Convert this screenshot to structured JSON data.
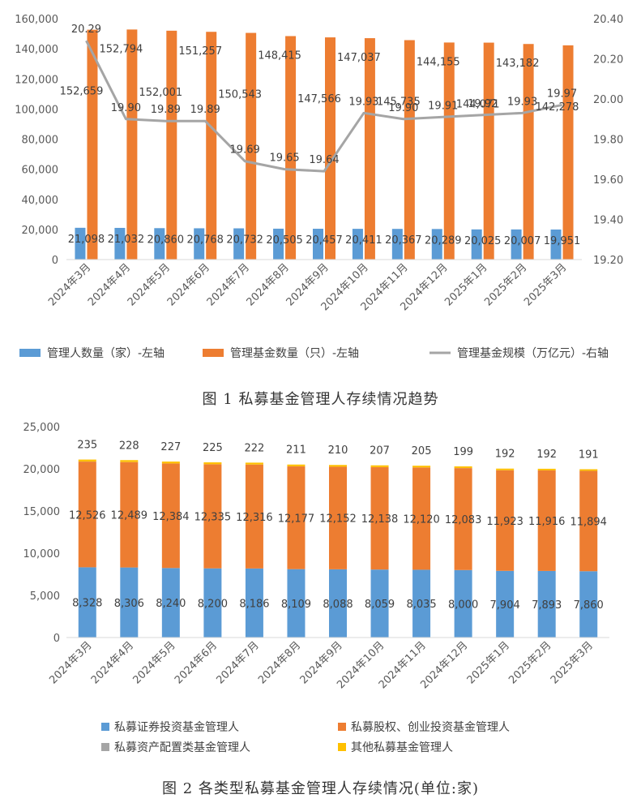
{
  "colors": {
    "blue": "#5b9bd5",
    "orange": "#ed7d31",
    "gray": "#a5a5a5",
    "yellow": "#ffc000",
    "axis": "#d9d9d9"
  },
  "figure1": {
    "caption": "图 1 私募基金管理人存续情况趋势",
    "chart_data": {
      "type": "bar",
      "categories": [
        "2024年3月",
        "2024年4月",
        "2024年5月",
        "2024年6月",
        "2024年7月",
        "2024年8月",
        "2024年9月",
        "2024年10月",
        "2024年11月",
        "2024年12月",
        "2025年1月",
        "2025年2月",
        "2025年3月"
      ],
      "series": [
        {
          "name": "管理人数量（家）-左轴",
          "type": "bar",
          "axis": "left",
          "color": "#5b9bd5",
          "values": [
            21098,
            21032,
            20860,
            20768,
            20732,
            20505,
            20457,
            20411,
            20367,
            20289,
            20025,
            20007,
            19951
          ],
          "labels": [
            "21,098",
            "21,032",
            "20,860",
            "20,768",
            "20,732",
            "20,505",
            "20,457",
            "20,411",
            "20,367",
            "20,289",
            "20,025",
            "20,007",
            "19,951"
          ]
        },
        {
          "name": "管理基金数量（只）-左轴",
          "type": "bar",
          "axis": "left",
          "color": "#ed7d31",
          "values": [
            152659,
            152794,
            152001,
            151257,
            150543,
            148415,
            147566,
            147037,
            145735,
            144155,
            144071,
            143182,
            142278
          ],
          "labels": [
            "152,659",
            "152,794",
            "152,001",
            "151,257",
            "150,543",
            "148,415",
            "147,566",
            "147,037",
            "145,735",
            "144,155",
            "144,071",
            "143,182",
            "142,278"
          ]
        },
        {
          "name": "管理基金规模（万亿元）-右轴",
          "type": "line",
          "axis": "right",
          "color": "#a5a5a5",
          "values": [
            20.29,
            19.9,
            19.89,
            19.89,
            19.69,
            19.65,
            19.64,
            19.93,
            19.9,
            19.91,
            19.92,
            19.93,
            19.97
          ],
          "labels": [
            "20.29",
            "19.90",
            "19.89",
            "19.89",
            "19.69",
            "19.65",
            "19.64",
            "19.93",
            "19.90",
            "19.91",
            "19.92",
            "19.93",
            "19.97"
          ]
        }
      ],
      "left_axis": {
        "min": 0,
        "max": 160000,
        "ticks": [
          "0",
          "20,000",
          "40,000",
          "60,000",
          "80,000",
          "100,000",
          "120,000",
          "140,000",
          "160,000"
        ]
      },
      "right_axis": {
        "min": 19.2,
        "max": 20.4,
        "ticks": [
          "19.20",
          "19.40",
          "19.60",
          "19.80",
          "20.00",
          "20.20",
          "20.40"
        ]
      },
      "legend_position": "bottom",
      "grid": false
    }
  },
  "figure2": {
    "caption": "图 2 各类型私募基金管理人存续情况(单位:家)",
    "chart_data": {
      "type": "bar",
      "stacked": true,
      "categories": [
        "2024年3月",
        "2024年4月",
        "2024年5月",
        "2024年6月",
        "2024年7月",
        "2024年8月",
        "2024年9月",
        "2024年10月",
        "2024年11月",
        "2024年12月",
        "2025年1月",
        "2025年2月",
        "2025年3月"
      ],
      "series": [
        {
          "name": "私募证券投资基金管理人",
          "color": "#5b9bd5",
          "values": [
            8328,
            8306,
            8240,
            8200,
            8186,
            8109,
            8088,
            8059,
            8035,
            8000,
            7904,
            7893,
            7860
          ],
          "labels": [
            "8,328",
            "8,306",
            "8,240",
            "8,200",
            "8,186",
            "8,109",
            "8,088",
            "8,059",
            "8,035",
            "8,000",
            "7,904",
            "7,893",
            "7,860"
          ]
        },
        {
          "name": "私募股权、创业投资基金管理人",
          "color": "#ed7d31",
          "values": [
            12526,
            12489,
            12384,
            12335,
            12316,
            12177,
            12152,
            12138,
            12120,
            12083,
            11923,
            11916,
            11894
          ],
          "labels": [
            "12,526",
            "12,489",
            "12,384",
            "12,335",
            "12,316",
            "12,177",
            "12,152",
            "12,138",
            "12,120",
            "12,083",
            "11,923",
            "11,916",
            "11,894"
          ]
        },
        {
          "name": "私募资产配置类基金管理人",
          "color": "#a5a5a5",
          "values": [
            9,
            9,
            9,
            8,
            8,
            8,
            7,
            7,
            7,
            7,
            6,
            6,
            6
          ]
        },
        {
          "name": "其他私募基金管理人",
          "color": "#ffc000",
          "values": [
            235,
            228,
            227,
            225,
            222,
            211,
            210,
            207,
            205,
            199,
            192,
            192,
            191
          ],
          "labels": [
            "235",
            "228",
            "227",
            "225",
            "222",
            "211",
            "210",
            "207",
            "205",
            "199",
            "192",
            "192",
            "191"
          ]
        }
      ],
      "y_axis": {
        "min": 0,
        "max": 25000,
        "ticks": [
          "0",
          "5,000",
          "10,000",
          "15,000",
          "20,000",
          "25,000"
        ]
      },
      "legend_position": "bottom",
      "grid": false
    }
  }
}
